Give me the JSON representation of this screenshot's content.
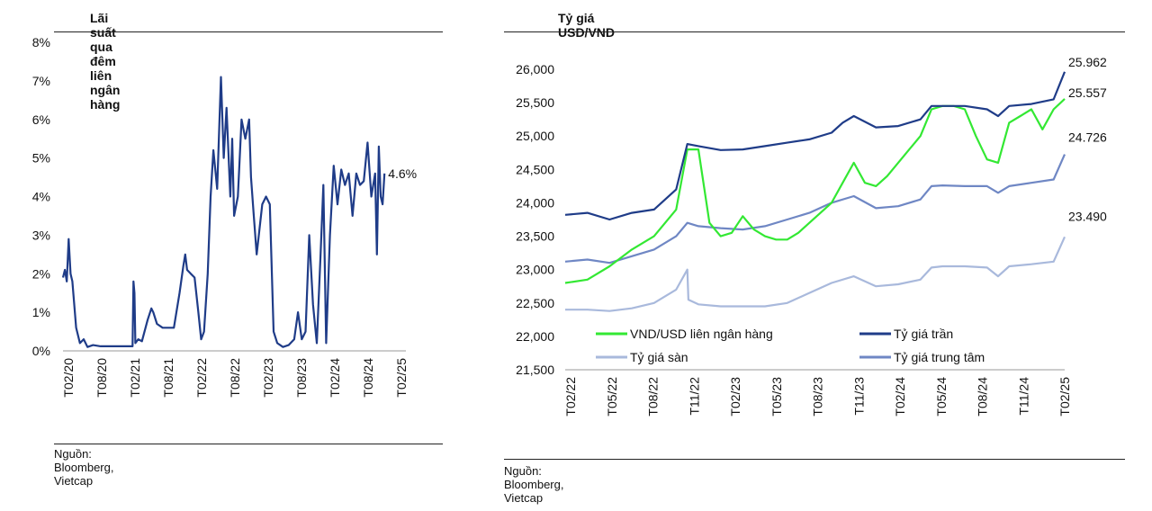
{
  "left": {
    "title": "Lãi suất qua đêm liên ngân hàng",
    "source": "Nguồn: Bloomberg, Vietcap",
    "chart_data": {
      "type": "line",
      "title": "Lãi suất qua đêm liên ngân hàng",
      "ylim": [
        0,
        8
      ],
      "yticks": [
        "0%",
        "1%",
        "2%",
        "3%",
        "4%",
        "5%",
        "6%",
        "7%",
        "8%"
      ],
      "xticks": [
        "T02/20",
        "T08/20",
        "T02/21",
        "T08/21",
        "T02/22",
        "T08/22",
        "T02/23",
        "T08/23",
        "T02/24",
        "T08/24",
        "T02/25"
      ],
      "end_label": "4.6%",
      "series": [
        {
          "name": "Lãi suất qua đêm",
          "color": "#1f3c88",
          "points": [
            [
              0,
              1.9
            ],
            [
              0.1,
              2.1
            ],
            [
              0.2,
              1.8
            ],
            [
              0.3,
              2.9
            ],
            [
              0.4,
              2.0
            ],
            [
              0.5,
              1.8
            ],
            [
              0.7,
              0.6
            ],
            [
              0.9,
              0.2
            ],
            [
              1.1,
              0.3
            ],
            [
              1.3,
              0.1
            ],
            [
              1.6,
              0.15
            ],
            [
              2.0,
              0.12
            ],
            [
              2.4,
              0.12
            ],
            [
              2.9,
              0.12
            ],
            [
              3.4,
              0.12
            ],
            [
              3.7,
              0.12
            ],
            [
              3.75,
              1.8
            ],
            [
              3.8,
              1.5
            ],
            [
              3.85,
              0.2
            ],
            [
              4.0,
              0.3
            ],
            [
              4.2,
              0.25
            ],
            [
              4.5,
              0.8
            ],
            [
              4.7,
              1.1
            ],
            [
              4.8,
              1.0
            ],
            [
              5.0,
              0.7
            ],
            [
              5.3,
              0.6
            ],
            [
              5.6,
              0.6
            ],
            [
              5.9,
              0.6
            ],
            [
              6.0,
              0.9
            ],
            [
              6.2,
              1.5
            ],
            [
              6.4,
              2.2
            ],
            [
              6.5,
              2.5
            ],
            [
              6.6,
              2.1
            ],
            [
              6.8,
              2.0
            ],
            [
              7.0,
              1.9
            ],
            [
              7.2,
              1.0
            ],
            [
              7.35,
              0.3
            ],
            [
              7.5,
              0.5
            ],
            [
              7.7,
              2.0
            ],
            [
              7.85,
              4.0
            ],
            [
              8.0,
              5.2
            ],
            [
              8.2,
              4.2
            ],
            [
              8.4,
              7.1
            ],
            [
              8.55,
              5.0
            ],
            [
              8.7,
              6.3
            ],
            [
              8.9,
              4.0
            ],
            [
              9.0,
              5.5
            ],
            [
              9.1,
              3.5
            ],
            [
              9.3,
              4.0
            ],
            [
              9.5,
              6.0
            ],
            [
              9.7,
              5.5
            ],
            [
              9.9,
              6.0
            ],
            [
              10.0,
              4.5
            ],
            [
              10.15,
              3.5
            ],
            [
              10.3,
              2.5
            ],
            [
              10.6,
              3.8
            ],
            [
              10.8,
              4.0
            ],
            [
              11.0,
              3.8
            ],
            [
              11.2,
              0.5
            ],
            [
              11.4,
              0.2
            ],
            [
              11.7,
              0.1
            ],
            [
              12.0,
              0.15
            ],
            [
              12.3,
              0.3
            ],
            [
              12.5,
              1.0
            ],
            [
              12.7,
              0.3
            ],
            [
              12.9,
              0.5
            ],
            [
              13.1,
              3.0
            ],
            [
              13.3,
              1.2
            ],
            [
              13.5,
              0.2
            ],
            [
              13.7,
              2.5
            ],
            [
              13.85,
              4.3
            ],
            [
              14.0,
              0.2
            ],
            [
              14.2,
              3.0
            ],
            [
              14.4,
              4.8
            ],
            [
              14.6,
              3.8
            ],
            [
              14.8,
              4.7
            ],
            [
              15.0,
              4.3
            ],
            [
              15.2,
              4.6
            ],
            [
              15.4,
              3.5
            ],
            [
              15.6,
              4.6
            ],
            [
              15.8,
              4.3
            ],
            [
              16.0,
              4.4
            ],
            [
              16.2,
              5.4
            ],
            [
              16.4,
              4.0
            ],
            [
              16.6,
              4.6
            ],
            [
              16.7,
              2.5
            ],
            [
              16.8,
              5.3
            ],
            [
              16.9,
              4.0
            ],
            [
              17.0,
              3.8
            ],
            [
              17.1,
              4.6
            ]
          ]
        }
      ]
    }
  },
  "right": {
    "title": "Tỷ giá USD/VND",
    "source": "Nguồn: Bloomberg, Vietcap",
    "chart_data": {
      "type": "line",
      "title": "Tỷ giá USD/VND",
      "ylim": [
        21500,
        26000
      ],
      "yticks": [
        "21,500",
        "22,000",
        "22,500",
        "23,000",
        "23,500",
        "24,000",
        "24,500",
        "25,000",
        "25,500",
        "26,000"
      ],
      "xticks": [
        "T02/22",
        "T05/22",
        "T08/22",
        "T11/22",
        "T02/23",
        "T05/23",
        "T08/23",
        "T11/23",
        "T02/24",
        "T05/24",
        "T08/24",
        "T11/24",
        "T02/25"
      ],
      "series": [
        {
          "name": "VND/USD liên ngân hàng",
          "color": "#33e833",
          "end_label": "25.557",
          "points": [
            [
              0,
              22800
            ],
            [
              1,
              22850
            ],
            [
              2,
              23050
            ],
            [
              3,
              23300
            ],
            [
              4,
              23500
            ],
            [
              5,
              23900
            ],
            [
              5.5,
              24800
            ],
            [
              6,
              24800
            ],
            [
              6.5,
              23700
            ],
            [
              7,
              23500
            ],
            [
              7.5,
              23550
            ],
            [
              8,
              23800
            ],
            [
              8.5,
              23600
            ],
            [
              9,
              23500
            ],
            [
              9.5,
              23450
            ],
            [
              10,
              23450
            ],
            [
              10.5,
              23550
            ],
            [
              11,
              23700
            ],
            [
              12,
              24000
            ],
            [
              12.5,
              24300
            ],
            [
              13,
              24600
            ],
            [
              13.5,
              24300
            ],
            [
              14,
              24250
            ],
            [
              14.5,
              24400
            ],
            [
              15,
              24600
            ],
            [
              15.5,
              24800
            ],
            [
              16,
              25000
            ],
            [
              16.5,
              25400
            ],
            [
              17,
              25450
            ],
            [
              17.5,
              25450
            ],
            [
              18,
              25400
            ],
            [
              18.5,
              25000
            ],
            [
              19,
              24650
            ],
            [
              19.5,
              24600
            ],
            [
              20,
              25200
            ],
            [
              20.5,
              25300
            ],
            [
              21,
              25400
            ],
            [
              21.5,
              25100
            ],
            [
              22,
              25400
            ],
            [
              22.5,
              25557
            ]
          ]
        },
        {
          "name": "Tỷ giá trần",
          "color": "#1f3c88",
          "end_label": "25.962",
          "points": [
            [
              0,
              23820
            ],
            [
              1,
              23850
            ],
            [
              2,
              23750
            ],
            [
              3,
              23850
            ],
            [
              4,
              23900
            ],
            [
              5,
              24200
            ],
            [
              5.5,
              24880
            ],
            [
              6,
              24850
            ],
            [
              7,
              24790
            ],
            [
              8,
              24800
            ],
            [
              9,
              24850
            ],
            [
              10,
              24900
            ],
            [
              11,
              24950
            ],
            [
              12,
              25050
            ],
            [
              12.5,
              25200
            ],
            [
              13,
              25300
            ],
            [
              14,
              25130
            ],
            [
              15,
              25150
            ],
            [
              16,
              25250
            ],
            [
              16.5,
              25450
            ],
            [
              17,
              25450
            ],
            [
              18,
              25450
            ],
            [
              19,
              25400
            ],
            [
              19.5,
              25300
            ],
            [
              20,
              25450
            ],
            [
              21,
              25480
            ],
            [
              22,
              25550
            ],
            [
              22.5,
              25962
            ]
          ]
        },
        {
          "name": "Tỷ giá sàn",
          "color": "#a9b9dc",
          "end_label": "23.490",
          "points": [
            [
              0,
              22400
            ],
            [
              1,
              22400
            ],
            [
              2,
              22380
            ],
            [
              3,
              22420
            ],
            [
              4,
              22500
            ],
            [
              5,
              22700
            ],
            [
              5.5,
              23000
            ],
            [
              5.55,
              22550
            ],
            [
              6,
              22480
            ],
            [
              7,
              22450
            ],
            [
              8,
              22450
            ],
            [
              9,
              22450
            ],
            [
              10,
              22500
            ],
            [
              11,
              22650
            ],
            [
              12,
              22800
            ],
            [
              13,
              22900
            ],
            [
              14,
              22750
            ],
            [
              15,
              22780
            ],
            [
              16,
              22850
            ],
            [
              16.5,
              23030
            ],
            [
              17,
              23050
            ],
            [
              18,
              23050
            ],
            [
              19,
              23030
            ],
            [
              19.5,
              22900
            ],
            [
              20,
              23050
            ],
            [
              21,
              23080
            ],
            [
              22,
              23120
            ],
            [
              22.5,
              23490
            ]
          ]
        },
        {
          "name": "Tỷ giá trung tâm",
          "color": "#6f87c4",
          "end_label": "24.726",
          "points": [
            [
              0,
              23120
            ],
            [
              1,
              23150
            ],
            [
              2,
              23100
            ],
            [
              3,
              23200
            ],
            [
              4,
              23300
            ],
            [
              5,
              23500
            ],
            [
              5.5,
              23700
            ],
            [
              6,
              23650
            ],
            [
              7,
              23620
            ],
            [
              8,
              23600
            ],
            [
              9,
              23650
            ],
            [
              10,
              23750
            ],
            [
              11,
              23850
            ],
            [
              12,
              24000
            ],
            [
              13,
              24100
            ],
            [
              14,
              23920
            ],
            [
              15,
              23950
            ],
            [
              16,
              24050
            ],
            [
              16.5,
              24250
            ],
            [
              17,
              24260
            ],
            [
              18,
              24250
            ],
            [
              19,
              24250
            ],
            [
              19.5,
              24150
            ],
            [
              20,
              24250
            ],
            [
              21,
              24300
            ],
            [
              22,
              24350
            ],
            [
              22.5,
              24726
            ]
          ]
        }
      ]
    }
  }
}
